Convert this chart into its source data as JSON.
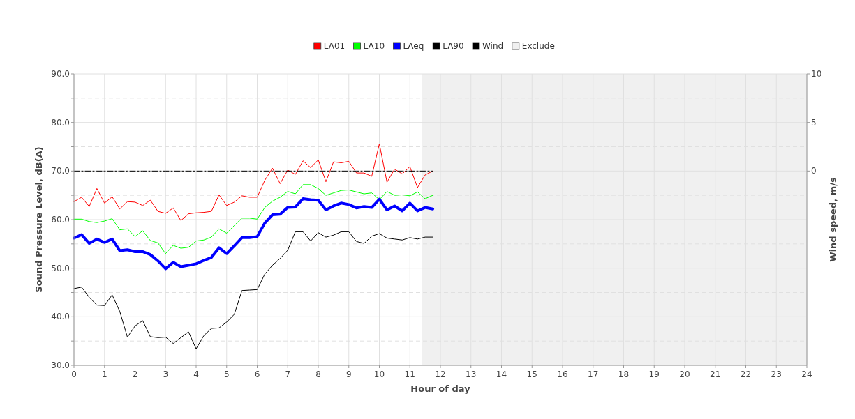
{
  "chart_data": {
    "type": "line",
    "xlabel": "Hour of day",
    "ylabel": "Sound Pressure Level, dB(A)",
    "y2label": "Wind speed, m/s",
    "x": [
      0,
      0.25,
      0.5,
      0.75,
      1,
      1.25,
      1.5,
      1.75,
      2,
      2.25,
      2.5,
      2.75,
      3,
      3.25,
      3.5,
      3.75,
      4,
      4.25,
      4.5,
      4.75,
      5,
      5.25,
      5.5,
      5.75,
      6,
      6.25,
      6.5,
      6.75,
      7,
      7.25,
      7.5,
      7.75,
      8,
      8.25,
      8.5,
      8.75,
      9,
      9.25,
      9.5,
      9.75,
      10,
      10.25,
      10.5,
      10.75,
      11,
      11.25,
      11.5,
      11.75
    ],
    "series": [
      {
        "name": "LA01",
        "color": "#ff0000",
        "values": [
          63.7,
          64.6,
          62.7,
          66.4,
          63.4,
          64.7,
          62.2,
          63.7,
          63.6,
          62.9,
          64.0,
          61.7,
          61.3,
          62.4,
          59.8,
          61.2,
          61.4,
          61.5,
          61.7,
          65.1,
          62.9,
          63.6,
          64.9,
          64.6,
          64.6,
          68.1,
          70.6,
          67.4,
          70.2,
          69.3,
          72.1,
          70.7,
          72.3,
          67.8,
          71.9,
          71.7,
          72.0,
          69.6,
          69.6,
          68.9,
          75.6,
          67.7,
          70.4,
          69.4,
          70.9,
          66.6,
          69.2,
          70.0
        ]
      },
      {
        "name": "LA10",
        "color": "#00ff00",
        "values": [
          60.1,
          60.1,
          59.6,
          59.4,
          59.7,
          60.2,
          57.9,
          58.1,
          56.5,
          57.7,
          55.7,
          55.2,
          53.0,
          54.7,
          54.1,
          54.3,
          55.6,
          55.8,
          56.4,
          58.1,
          57.2,
          58.8,
          60.3,
          60.3,
          60.1,
          62.5,
          63.8,
          64.6,
          65.8,
          65.3,
          67.2,
          67.2,
          66.4,
          65.0,
          65.5,
          66.0,
          66.1,
          65.7,
          65.3,
          65.5,
          64.1,
          65.8,
          65.0,
          65.1,
          64.9,
          65.7,
          64.3,
          65.0
        ]
      },
      {
        "name": "LAeq",
        "color": "#0000ff",
        "values": [
          56.2,
          56.9,
          55.1,
          56.0,
          55.3,
          56.0,
          53.6,
          53.8,
          53.4,
          53.4,
          52.8,
          51.5,
          49.9,
          51.2,
          50.3,
          50.6,
          50.9,
          51.6,
          52.2,
          54.2,
          53.0,
          54.6,
          56.3,
          56.3,
          56.5,
          59.3,
          61.0,
          61.1,
          62.5,
          62.6,
          64.3,
          64.1,
          64.0,
          62.0,
          62.8,
          63.4,
          63.1,
          62.4,
          62.7,
          62.5,
          64.2,
          62.0,
          62.8,
          61.8,
          63.4,
          61.8,
          62.5,
          62.2
        ]
      },
      {
        "name": "LA90",
        "color": "#000000",
        "values": [
          45.8,
          46.1,
          44.0,
          42.4,
          42.3,
          44.5,
          41.1,
          35.8,
          38.1,
          39.2,
          35.9,
          35.7,
          35.8,
          34.5,
          35.7,
          36.9,
          33.4,
          36.1,
          37.6,
          37.7,
          38.9,
          40.5,
          45.4,
          45.5,
          45.6,
          48.8,
          50.6,
          52.0,
          53.7,
          57.5,
          57.5,
          55.6,
          57.3,
          56.4,
          56.8,
          57.5,
          57.5,
          55.5,
          55.1,
          56.6,
          57.1,
          56.2,
          56.0,
          55.8,
          56.3,
          56.0,
          56.4,
          56.4
        ]
      },
      {
        "name": "Wind",
        "color": "#000000",
        "axis": "y2",
        "line_style": "dashed",
        "values": [
          0,
          0,
          0,
          0,
          0,
          0,
          0,
          0,
          0,
          0,
          0,
          0,
          0,
          0,
          0,
          0,
          0,
          0,
          0,
          0,
          0,
          0,
          0,
          0,
          0,
          0,
          0,
          0,
          0,
          0,
          0,
          0,
          0,
          0,
          0,
          0,
          0,
          0,
          0,
          0,
          0,
          0,
          0,
          0,
          0,
          0,
          0,
          0
        ]
      }
    ],
    "xlim": [
      0,
      24
    ],
    "xticks": [
      0,
      1,
      2,
      3,
      4,
      5,
      6,
      7,
      8,
      9,
      10,
      11,
      12,
      13,
      14,
      15,
      16,
      17,
      18,
      19,
      20,
      21,
      22,
      23,
      24
    ],
    "ylim": [
      30,
      90
    ],
    "yticks": [
      {
        "value": 30,
        "label": "30.0"
      },
      {
        "value": 35,
        "label": null
      },
      {
        "value": 40,
        "label": "40.0"
      },
      {
        "value": 45,
        "label": null
      },
      {
        "value": 50,
        "label": "50.0"
      },
      {
        "value": 55,
        "label": null
      },
      {
        "value": 60,
        "label": "60.0"
      },
      {
        "value": 65,
        "label": null
      },
      {
        "value": 70,
        "label": "70.0"
      },
      {
        "value": 75,
        "label": null
      },
      {
        "value": 80,
        "label": "80.0"
      },
      {
        "value": 85,
        "label": null
      },
      {
        "value": 90,
        "label": "90.0"
      }
    ],
    "y2lim": [
      -20,
      10
    ],
    "y2ticks": [
      0,
      5,
      10
    ],
    "bands": [
      {
        "axis": "x",
        "from": 11.4,
        "to": 24,
        "label": "Exclude",
        "color": "#f0f0f0"
      }
    ],
    "grid": true,
    "legend": "top",
    "marker": "none"
  }
}
